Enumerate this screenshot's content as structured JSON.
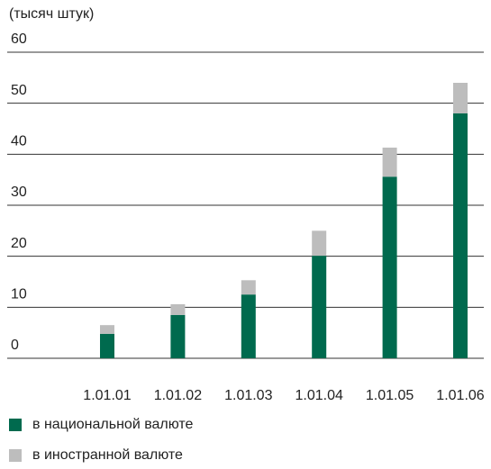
{
  "chart_data": {
    "type": "bar",
    "stacked": true,
    "y_label": "(тысяч штук)",
    "categories": [
      "1.01.01",
      "1.01.02",
      "1.01.03",
      "1.01.04",
      "1.01.05",
      "1.01.06"
    ],
    "series": [
      {
        "name": "в национальной валюте",
        "color": "#006a4e",
        "values": [
          4.8,
          8.5,
          12.5,
          20.1,
          35.6,
          48.0
        ]
      },
      {
        "name": "в иностранной валюте",
        "color": "#bdbdbd",
        "values": [
          1.7,
          2.1,
          2.8,
          4.9,
          5.7,
          6.0
        ]
      }
    ],
    "ylim": [
      0,
      60
    ],
    "yticks": [
      0,
      10,
      20,
      30,
      40,
      50,
      60
    ],
    "grid": true
  }
}
